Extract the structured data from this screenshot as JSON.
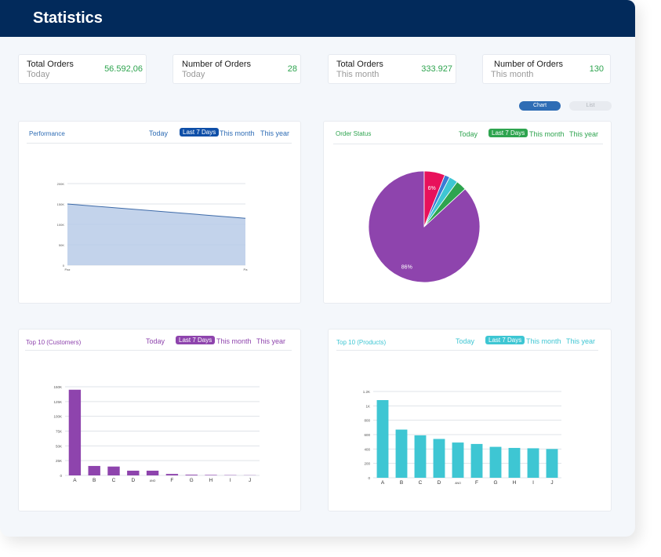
{
  "header": {
    "title": "Statistics"
  },
  "stats": [
    {
      "label": "Total Orders",
      "period": "Today",
      "value": "56.592,06"
    },
    {
      "label": "Number of Orders",
      "period": "Today",
      "value": "28"
    },
    {
      "label": "Total Orders",
      "period": "This month",
      "value": "333.927"
    },
    {
      "label": "Number of Orders",
      "period": "This month",
      "value": "130"
    }
  ],
  "view_toggle": {
    "chart": "Chart",
    "list": "List"
  },
  "filters": [
    "Today",
    "Last 7 Days",
    "This month",
    "This year"
  ],
  "colors": {
    "header": "#022a5b",
    "green": "#2ea44f",
    "blue": "#2f6db5",
    "purple": "#8e44ad",
    "cyan": "#3ec6d3"
  },
  "chart_data": [
    {
      "type": "area",
      "title": "Performance",
      "x": [
        "Paz",
        "Pa"
      ],
      "values": [
        150000,
        115000
      ],
      "y_ticks": [
        "0",
        "50K",
        "100K",
        "150K",
        "200K"
      ],
      "ylim": [
        0,
        200000
      ]
    },
    {
      "type": "pie",
      "title": "Order Status",
      "slices": [
        {
          "label": "86%",
          "value": 86,
          "color": "#8e44ad"
        },
        {
          "label": "6%",
          "value": 6,
          "color": "#e8115b"
        },
        {
          "label": "",
          "value": 1.5,
          "color": "#3a7bd5"
        },
        {
          "label": "",
          "value": 2.5,
          "color": "#3ec6d3"
        },
        {
          "label": "",
          "value": 3,
          "color": "#2ea44f"
        }
      ]
    },
    {
      "type": "bar",
      "title": "Top 10 (Customers)",
      "categories": [
        "A",
        "B",
        "C",
        "D",
        "ANO",
        "F",
        "G",
        "H",
        "I",
        "J"
      ],
      "values": [
        145000,
        16000,
        15000,
        8000,
        8000,
        2500,
        1200,
        800,
        500,
        300
      ],
      "y_ticks": [
        "0",
        "25K",
        "50K",
        "75K",
        "100K",
        "125K",
        "150K"
      ],
      "ylim": [
        0,
        150000
      ]
    },
    {
      "type": "bar",
      "title": "Top 10 (Products)",
      "categories": [
        "A",
        "B",
        "C",
        "D",
        "ANO",
        "F",
        "G",
        "H",
        "I",
        "J"
      ],
      "values": [
        1080,
        670,
        590,
        540,
        490,
        470,
        430,
        415,
        410,
        400
      ],
      "y_ticks": [
        "0",
        "200",
        "400",
        "600",
        "800",
        "1K",
        "1.2K"
      ],
      "ylim": [
        0,
        1200
      ]
    }
  ]
}
